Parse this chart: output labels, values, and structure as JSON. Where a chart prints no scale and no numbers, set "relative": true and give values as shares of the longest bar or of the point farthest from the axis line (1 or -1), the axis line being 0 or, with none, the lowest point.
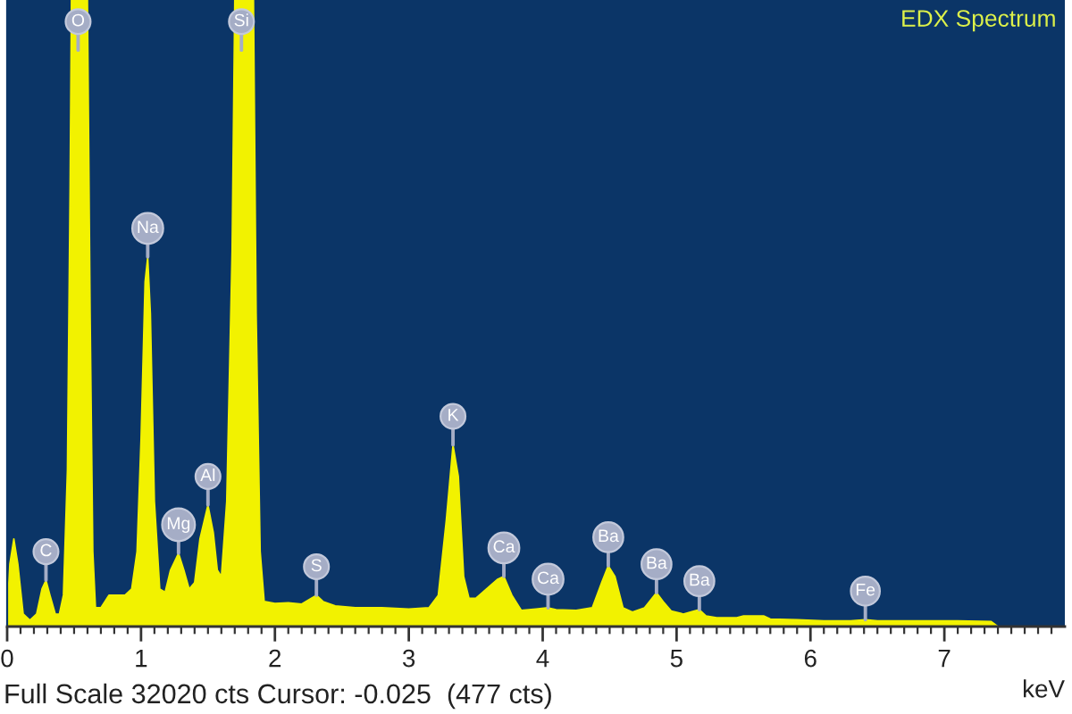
{
  "chart_data": {
    "type": "area",
    "title": "EDX Spectrum",
    "xlabel": "keV",
    "relative": true,
    "color": "#f2f200",
    "xlim": [
      0,
      7.9
    ],
    "xticks": [
      0,
      {
        "value": 0.1,
        "label": null
      },
      {
        "value": 0.2,
        "label": null
      },
      {
        "value": 0.3,
        "label": null
      },
      {
        "value": 0.4,
        "label": null
      },
      {
        "value": 0.5,
        "label": null
      },
      {
        "value": 0.6,
        "label": null
      },
      {
        "value": 0.7,
        "label": null
      },
      {
        "value": 0.8,
        "label": null
      },
      {
        "value": 0.9,
        "label": null
      },
      1,
      {
        "value": 1.1,
        "label": null
      },
      {
        "value": 1.2,
        "label": null
      },
      {
        "value": 1.3,
        "label": null
      },
      {
        "value": 1.4,
        "label": null
      },
      {
        "value": 1.5,
        "label": null
      },
      {
        "value": 1.6,
        "label": null
      },
      {
        "value": 1.7,
        "label": null
      },
      {
        "value": 1.8,
        "label": null
      },
      {
        "value": 1.9,
        "label": null
      },
      2,
      {
        "value": 2.1,
        "label": null
      },
      {
        "value": 2.2,
        "label": null
      },
      {
        "value": 2.3,
        "label": null
      },
      {
        "value": 2.4,
        "label": null
      },
      {
        "value": 2.5,
        "label": null
      },
      {
        "value": 2.6,
        "label": null
      },
      {
        "value": 2.7,
        "label": null
      },
      {
        "value": 2.8,
        "label": null
      },
      {
        "value": 2.9,
        "label": null
      },
      3,
      {
        "value": 3.1,
        "label": null
      },
      {
        "value": 3.2,
        "label": null
      },
      {
        "value": 3.3,
        "label": null
      },
      {
        "value": 3.4,
        "label": null
      },
      {
        "value": 3.5,
        "label": null
      },
      {
        "value": 3.6,
        "label": null
      },
      {
        "value": 3.7,
        "label": null
      },
      {
        "value": 3.8,
        "label": null
      },
      {
        "value": 3.9,
        "label": null
      },
      4,
      {
        "value": 4.1,
        "label": null
      },
      {
        "value": 4.2,
        "label": null
      },
      {
        "value": 4.3,
        "label": null
      },
      {
        "value": 4.4,
        "label": null
      },
      {
        "value": 4.5,
        "label": null
      },
      {
        "value": 4.6,
        "label": null
      },
      {
        "value": 4.7,
        "label": null
      },
      {
        "value": 4.8,
        "label": null
      },
      {
        "value": 4.9,
        "label": null
      },
      5,
      {
        "value": 5.1,
        "label": null
      },
      {
        "value": 5.2,
        "label": null
      },
      {
        "value": 5.3,
        "label": null
      },
      {
        "value": 5.4,
        "label": null
      },
      {
        "value": 5.5,
        "label": null
      },
      {
        "value": 5.6,
        "label": null
      },
      {
        "value": 5.7,
        "label": null
      },
      {
        "value": 5.8,
        "label": null
      },
      {
        "value": 5.9,
        "label": null
      },
      6,
      {
        "value": 6.1,
        "label": null
      },
      {
        "value": 6.2,
        "label": null
      },
      {
        "value": 6.3,
        "label": null
      },
      {
        "value": 6.4,
        "label": null
      },
      {
        "value": 6.5,
        "label": null
      },
      {
        "value": 6.6,
        "label": null
      },
      {
        "value": 6.7,
        "label": null
      },
      {
        "value": 6.8,
        "label": null
      },
      {
        "value": 6.9,
        "label": null
      },
      7,
      {
        "value": 7.1,
        "label": null
      },
      {
        "value": 7.2,
        "label": null
      },
      {
        "value": 7.3,
        "label": null
      },
      {
        "value": 7.4,
        "label": null
      },
      {
        "value": 7.5,
        "label": null
      },
      {
        "value": 7.6,
        "label": null
      },
      {
        "value": 7.7,
        "label": null
      },
      {
        "value": 7.8,
        "label": null
      }
    ],
    "x": [
      0.0,
      0.02,
      0.05,
      0.08,
      0.12,
      0.17,
      0.22,
      0.26,
      0.29,
      0.32,
      0.36,
      0.39,
      0.42,
      0.45,
      0.47,
      0.48,
      0.6,
      0.62,
      0.64,
      0.66,
      0.7,
      0.76,
      0.82,
      0.88,
      0.93,
      0.97,
      1.0,
      1.03,
      1.05,
      1.07,
      1.1,
      1.14,
      1.18,
      1.22,
      1.28,
      1.32,
      1.36,
      1.4,
      1.44,
      1.5,
      1.54,
      1.57,
      1.6,
      1.64,
      1.68,
      1.7,
      1.84,
      1.86,
      1.89,
      1.92,
      2.0,
      2.1,
      2.2,
      2.27,
      2.31,
      2.36,
      2.45,
      2.6,
      2.8,
      3.0,
      3.15,
      3.22,
      3.28,
      3.33,
      3.37,
      3.41,
      3.45,
      3.5,
      3.58,
      3.66,
      3.71,
      3.77,
      3.84,
      3.95,
      4.04,
      4.1,
      4.25,
      4.37,
      4.44,
      4.49,
      4.54,
      4.6,
      4.67,
      4.76,
      4.85,
      4.9,
      4.96,
      5.05,
      5.12,
      5.17,
      5.22,
      5.3,
      5.45,
      5.5,
      5.65,
      5.7,
      5.9,
      6.1,
      6.3,
      6.41,
      6.5,
      6.8,
      7.1,
      7.35,
      7.4
    ],
    "values": [
      0.02,
      0.1,
      0.14,
      0.1,
      0.02,
      0.01,
      0.02,
      0.06,
      0.074,
      0.05,
      0.02,
      0.02,
      0.05,
      0.25,
      0.7,
      1.0,
      1.0,
      0.5,
      0.12,
      0.03,
      0.03,
      0.05,
      0.05,
      0.05,
      0.06,
      0.12,
      0.3,
      0.55,
      0.59,
      0.5,
      0.2,
      0.06,
      0.055,
      0.09,
      0.117,
      0.09,
      0.06,
      0.07,
      0.14,
      0.194,
      0.15,
      0.09,
      0.08,
      0.2,
      0.6,
      1.0,
      1.0,
      0.5,
      0.12,
      0.04,
      0.037,
      0.038,
      0.036,
      0.045,
      0.05,
      0.04,
      0.033,
      0.03,
      0.03,
      0.028,
      0.03,
      0.05,
      0.17,
      0.29,
      0.24,
      0.08,
      0.045,
      0.045,
      0.06,
      0.075,
      0.08,
      0.05,
      0.026,
      0.028,
      0.03,
      0.027,
      0.026,
      0.03,
      0.07,
      0.097,
      0.08,
      0.03,
      0.023,
      0.03,
      0.054,
      0.04,
      0.025,
      0.02,
      0.024,
      0.027,
      0.017,
      0.014,
      0.014,
      0.017,
      0.017,
      0.012,
      0.011,
      0.009,
      0.009,
      0.011,
      0.009,
      0.009,
      0.009,
      0.008,
      0.0
    ],
    "annotations": [
      "Full Scale 32020 cts Cursor: -0.025  (477 cts)",
      {
        "text": "C",
        "x": 0.29,
        "y": 0.074
      },
      {
        "text": "O",
        "x": 0.53,
        "y": 0.92
      },
      {
        "text": "Na",
        "x": 1.05,
        "y": 0.59
      },
      {
        "text": "Mg",
        "x": 1.28,
        "y": 0.117
      },
      {
        "text": "Al",
        "x": 1.5,
        "y": 0.194
      },
      {
        "text": "Si",
        "x": 1.75,
        "y": 0.92
      },
      {
        "text": "S",
        "x": 2.31,
        "y": 0.05
      },
      {
        "text": "K",
        "x": 3.33,
        "y": 0.29
      },
      {
        "text": "Ca",
        "x": 3.71,
        "y": 0.08
      },
      {
        "text": "Ca",
        "x": 4.04,
        "y": 0.03
      },
      {
        "text": "Ba",
        "x": 4.49,
        "y": 0.097
      },
      {
        "text": "Ba",
        "x": 4.85,
        "y": 0.054
      },
      {
        "text": "Ba",
        "x": 5.17,
        "y": 0.027
      },
      {
        "text": "Fe",
        "x": 6.41,
        "y": 0.011
      }
    ]
  }
}
